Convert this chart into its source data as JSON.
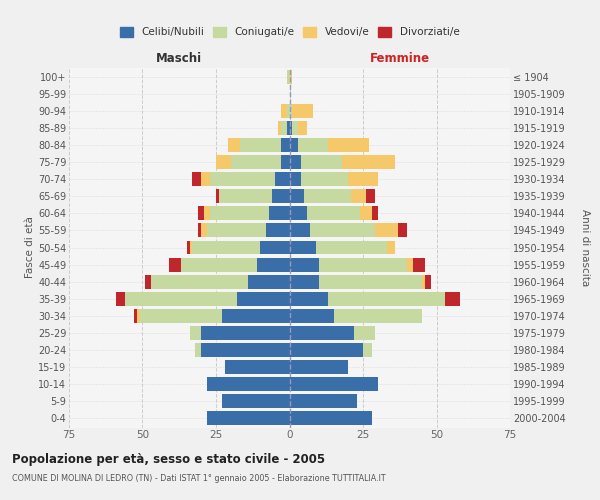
{
  "age_groups": [
    "0-4",
    "5-9",
    "10-14",
    "15-19",
    "20-24",
    "25-29",
    "30-34",
    "35-39",
    "40-44",
    "45-49",
    "50-54",
    "55-59",
    "60-64",
    "65-69",
    "70-74",
    "75-79",
    "80-84",
    "85-89",
    "90-94",
    "95-99",
    "100+"
  ],
  "birth_years": [
    "2000-2004",
    "1995-1999",
    "1990-1994",
    "1985-1989",
    "1980-1984",
    "1975-1979",
    "1970-1974",
    "1965-1969",
    "1960-1964",
    "1955-1959",
    "1950-1954",
    "1945-1949",
    "1940-1944",
    "1935-1939",
    "1930-1934",
    "1925-1929",
    "1920-1924",
    "1915-1919",
    "1910-1914",
    "1905-1909",
    "≤ 1904"
  ],
  "maschi_celibi": [
    28,
    23,
    28,
    22,
    30,
    30,
    23,
    18,
    14,
    11,
    10,
    8,
    7,
    6,
    5,
    3,
    3,
    1,
    0,
    0,
    0
  ],
  "maschi_coniugati": [
    0,
    0,
    0,
    0,
    2,
    4,
    28,
    38,
    33,
    26,
    23,
    20,
    20,
    18,
    22,
    17,
    14,
    2,
    1,
    0,
    1
  ],
  "maschi_vedovi": [
    0,
    0,
    0,
    0,
    0,
    0,
    1,
    0,
    0,
    0,
    1,
    2,
    2,
    0,
    3,
    5,
    4,
    1,
    2,
    0,
    0
  ],
  "maschi_divorziati": [
    0,
    0,
    0,
    0,
    0,
    0,
    1,
    3,
    2,
    4,
    1,
    1,
    2,
    1,
    3,
    0,
    0,
    0,
    0,
    0,
    0
  ],
  "femmine_nubili": [
    28,
    23,
    30,
    20,
    25,
    22,
    15,
    13,
    10,
    10,
    9,
    7,
    6,
    5,
    4,
    4,
    3,
    1,
    0,
    0,
    0
  ],
  "femmine_coniugate": [
    0,
    0,
    0,
    0,
    3,
    7,
    30,
    40,
    35,
    30,
    24,
    22,
    18,
    16,
    16,
    14,
    10,
    2,
    1,
    0,
    0
  ],
  "femmine_vedove": [
    0,
    0,
    0,
    0,
    0,
    0,
    0,
    0,
    1,
    2,
    3,
    8,
    4,
    5,
    10,
    18,
    14,
    3,
    7,
    0,
    1
  ],
  "femmine_divorziate": [
    0,
    0,
    0,
    0,
    0,
    0,
    0,
    5,
    2,
    4,
    0,
    3,
    2,
    3,
    0,
    0,
    0,
    0,
    0,
    0,
    0
  ],
  "colors": {
    "celibi_nubili": "#3a6ea8",
    "coniugati": "#c5d9a0",
    "vedovi": "#f5c96a",
    "divorziati": "#c0272d"
  },
  "xlim": 75,
  "title": "Popolazione per età, sesso e stato civile - 2005",
  "subtitle": "COMUNE DI MOLINA DI LEDRO (TN) - Dati ISTAT 1° gennaio 2005 - Elaborazione TUTTITALIA.IT",
  "bg_color": "#f0f0f0",
  "plot_bg": "#f5f5f5"
}
